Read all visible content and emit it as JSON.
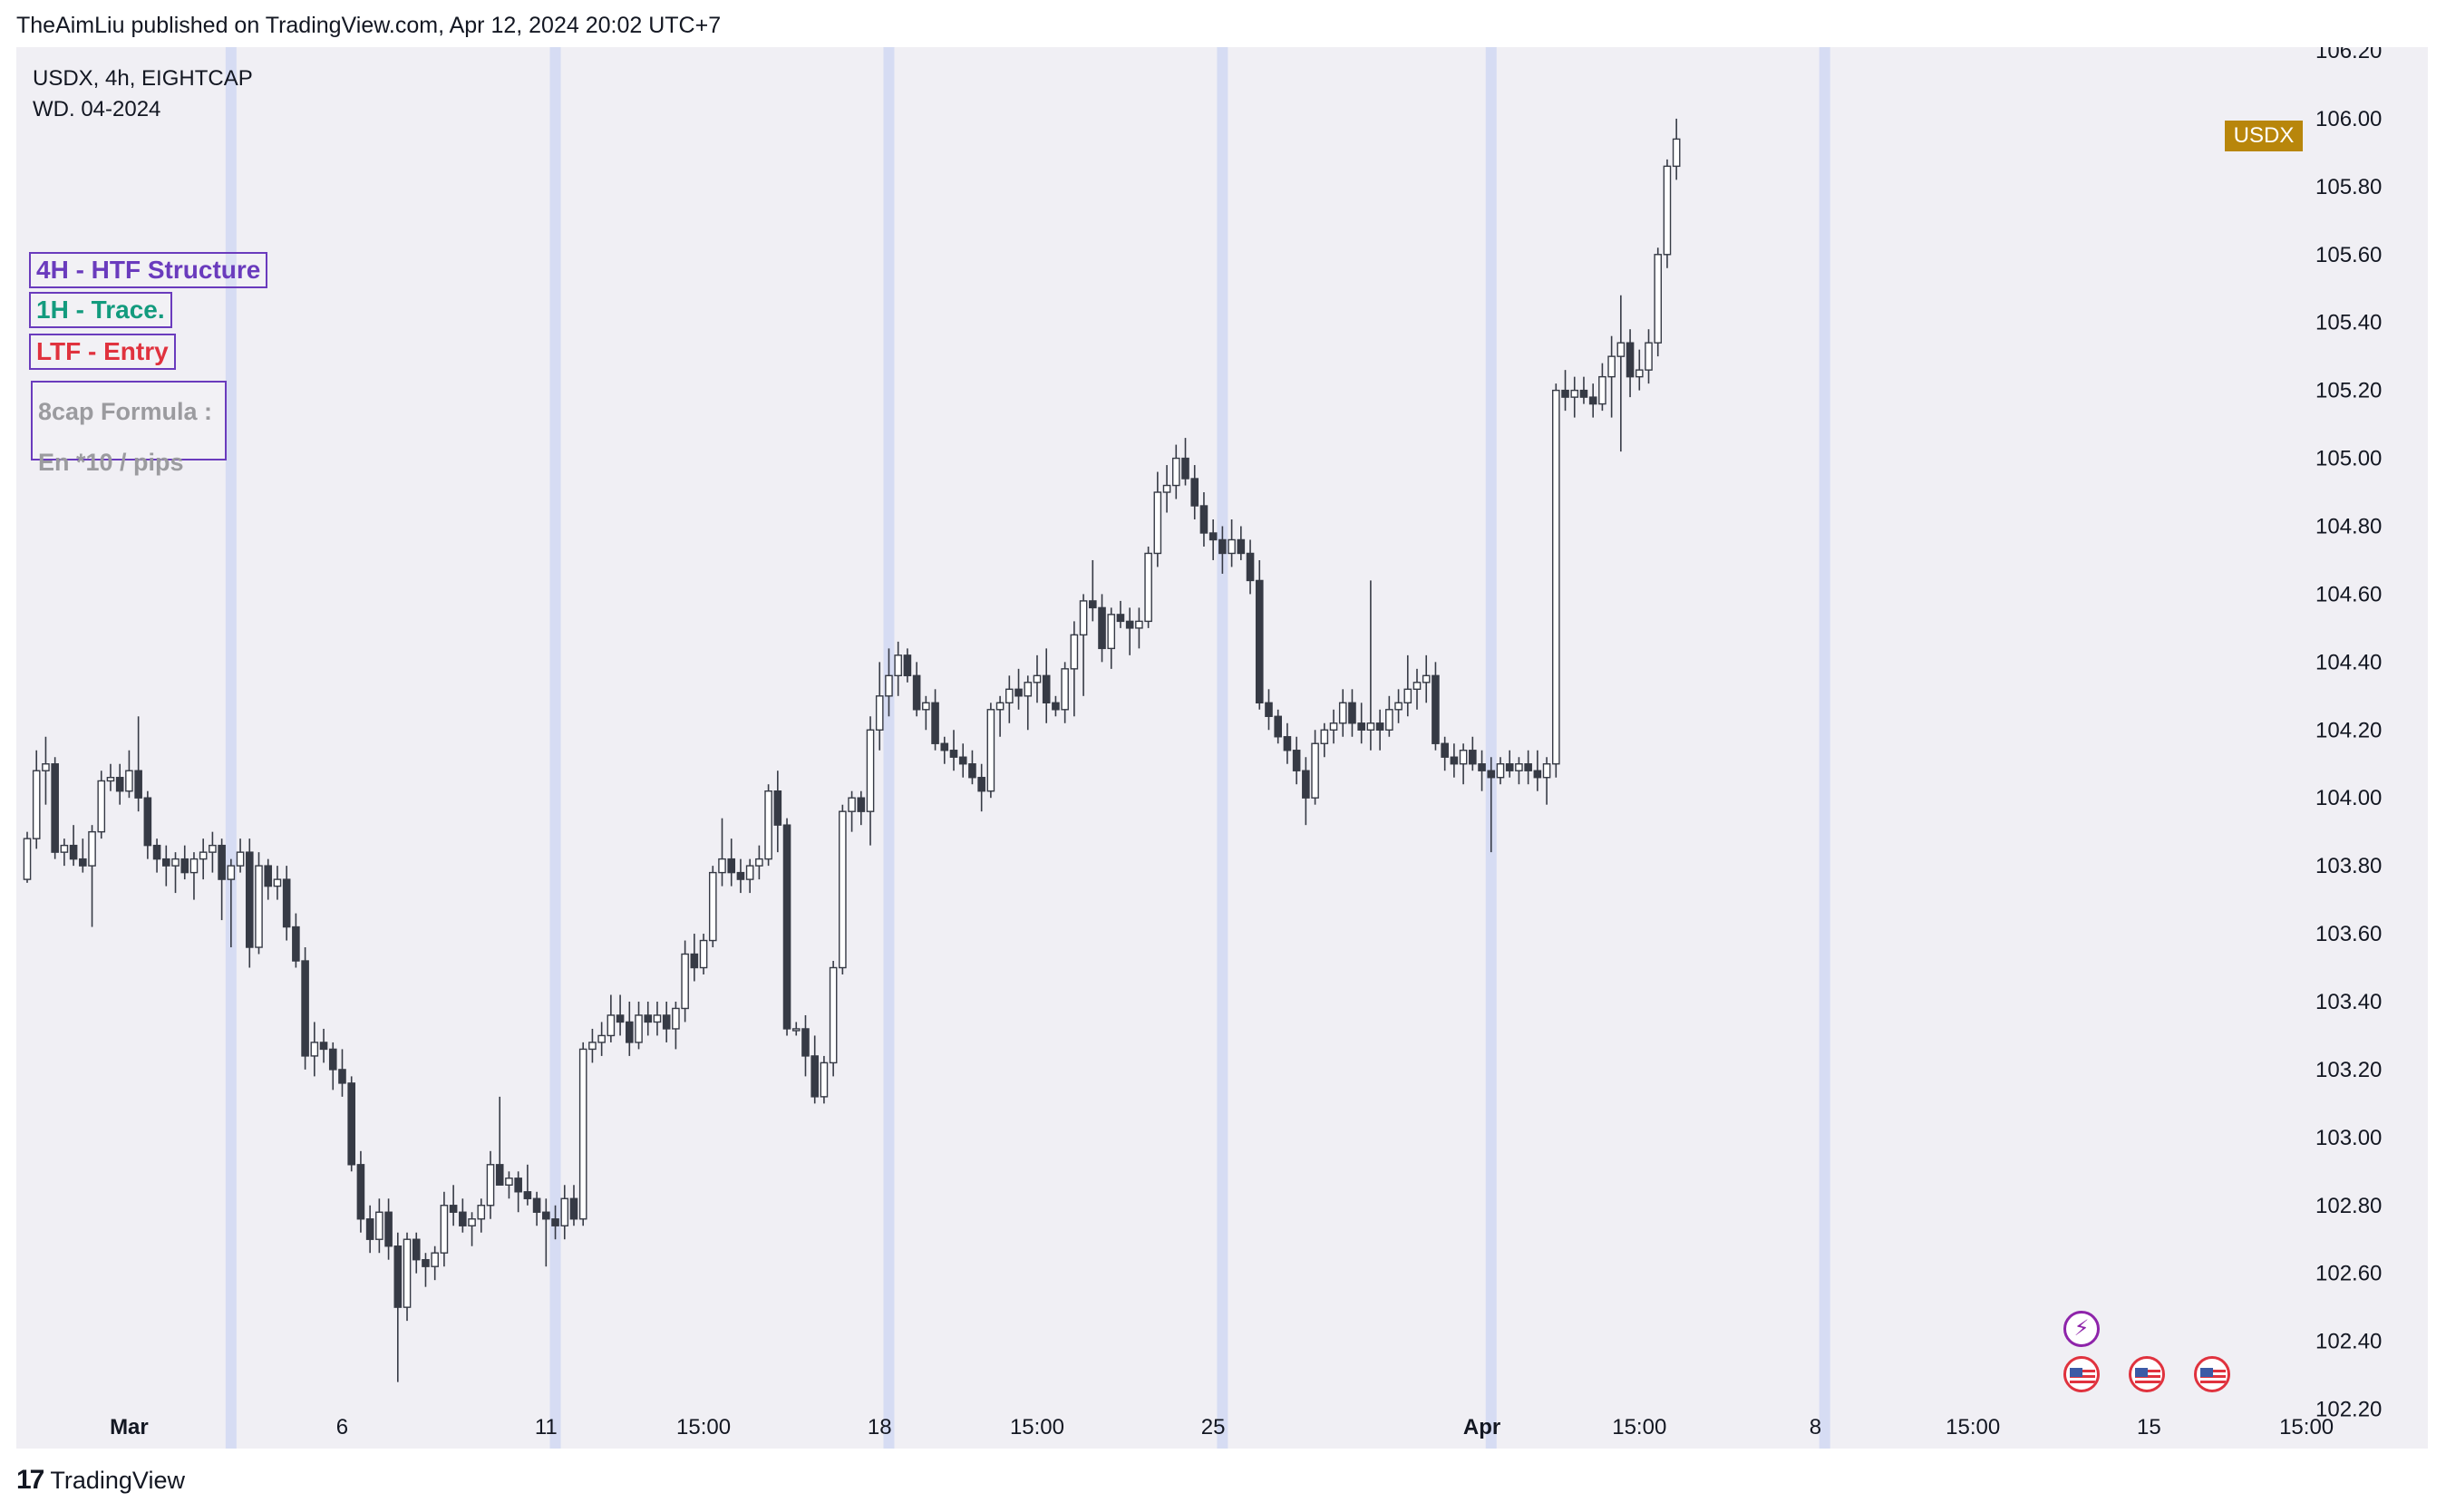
{
  "header": {
    "published": "TheAimLiu published on TradingView.com, Apr 12, 2024 20:02 UTC+7"
  },
  "legend": {
    "symbol_line": "USDX, 4h, EIGHTCAP",
    "note_line": "WD. 04-2024"
  },
  "labels": {
    "htf": "4H - HTF Structure",
    "trace": "1H - Trace.",
    "entry": "LTF - Entry",
    "formula_1": "8cap Formula :",
    "formula_2": "En *10 / pips"
  },
  "price_badge": {
    "text": "USDX",
    "color": "#b8860b"
  },
  "footer": {
    "brand": "TradingView",
    "logo": "17"
  },
  "events": {
    "bolt_icon": "lightning-icon",
    "flag_icon": "us-flag-icon",
    "bolt_glyph": "⚡"
  },
  "chart_data": {
    "type": "candlestick",
    "symbol": "USDX",
    "timeframe": "4h",
    "ylim": [
      102.1,
      106.2
    ],
    "y_ticks": [
      102.2,
      102.4,
      102.6,
      102.8,
      103.0,
      103.2,
      103.4,
      103.6,
      103.8,
      104.0,
      104.2,
      104.4,
      104.6,
      104.8,
      105.0,
      105.2,
      105.4,
      105.6,
      105.8,
      106.0,
      106.2
    ],
    "x_ticks": [
      {
        "label": "Mar",
        "bold": true,
        "index": 11
      },
      {
        "label": "6",
        "bold": false,
        "index": 34
      },
      {
        "label": "11",
        "bold": false,
        "index": 56
      },
      {
        "label": "15:00",
        "bold": false,
        "index": 73
      },
      {
        "label": "18",
        "bold": false,
        "index": 92
      },
      {
        "label": "15:00",
        "bold": false,
        "index": 109
      },
      {
        "label": "25",
        "bold": false,
        "index": 128
      },
      {
        "label": "Apr",
        "bold": true,
        "index": 157
      },
      {
        "label": "15:00",
        "bold": false,
        "index": 174
      },
      {
        "label": "8",
        "bold": false,
        "index": 193
      },
      {
        "label": "15:00",
        "bold": false,
        "index": 210
      },
      {
        "label": "15",
        "bold": false,
        "index": 229
      },
      {
        "label": "15:00",
        "bold": false,
        "index": 246
      }
    ],
    "session_bands": [
      22,
      57,
      93,
      129,
      158,
      194
    ],
    "colors": {
      "up_body": "#ffffff",
      "down_body": "#363a45",
      "wick": "#363a45",
      "band": "#d6dcf3"
    },
    "ohlc": [
      [
        103.76,
        103.9,
        103.75,
        103.88
      ],
      [
        103.88,
        104.14,
        103.85,
        104.08
      ],
      [
        104.08,
        104.18,
        103.98,
        104.1
      ],
      [
        104.1,
        104.12,
        103.82,
        103.84
      ],
      [
        103.84,
        103.88,
        103.8,
        103.86
      ],
      [
        103.86,
        103.92,
        103.8,
        103.82
      ],
      [
        103.82,
        103.88,
        103.78,
        103.8
      ],
      [
        103.8,
        103.92,
        103.62,
        103.9
      ],
      [
        103.9,
        104.08,
        103.88,
        104.05
      ],
      [
        104.05,
        104.1,
        104.02,
        104.06
      ],
      [
        104.06,
        104.1,
        103.98,
        104.02
      ],
      [
        104.02,
        104.14,
        104.0,
        104.08
      ],
      [
        104.08,
        104.24,
        103.96,
        104.0
      ],
      [
        104.0,
        104.02,
        103.82,
        103.86
      ],
      [
        103.86,
        103.88,
        103.78,
        103.82
      ],
      [
        103.82,
        103.86,
        103.74,
        103.8
      ],
      [
        103.8,
        103.84,
        103.72,
        103.82
      ],
      [
        103.82,
        103.86,
        103.76,
        103.78
      ],
      [
        103.78,
        103.84,
        103.7,
        103.82
      ],
      [
        103.82,
        103.88,
        103.76,
        103.84
      ],
      [
        103.84,
        103.9,
        103.78,
        103.86
      ],
      [
        103.86,
        103.88,
        103.64,
        103.76
      ],
      [
        103.76,
        103.82,
        103.56,
        103.8
      ],
      [
        103.8,
        103.88,
        103.78,
        103.84
      ],
      [
        103.84,
        103.88,
        103.5,
        103.56
      ],
      [
        103.56,
        103.84,
        103.54,
        103.8
      ],
      [
        103.8,
        103.82,
        103.7,
        103.74
      ],
      [
        103.74,
        103.8,
        103.7,
        103.76
      ],
      [
        103.76,
        103.8,
        103.58,
        103.62
      ],
      [
        103.62,
        103.66,
        103.5,
        103.52
      ],
      [
        103.52,
        103.56,
        103.2,
        103.24
      ],
      [
        103.24,
        103.34,
        103.18,
        103.28
      ],
      [
        103.28,
        103.32,
        103.22,
        103.26
      ],
      [
        103.26,
        103.28,
        103.14,
        103.2
      ],
      [
        103.2,
        103.26,
        103.12,
        103.16
      ],
      [
        103.16,
        103.18,
        102.9,
        102.92
      ],
      [
        102.92,
        102.96,
        102.72,
        102.76
      ],
      [
        102.76,
        102.8,
        102.66,
        102.7
      ],
      [
        102.7,
        102.82,
        102.66,
        102.78
      ],
      [
        102.78,
        102.82,
        102.64,
        102.68
      ],
      [
        102.68,
        102.72,
        102.28,
        102.5
      ],
      [
        102.5,
        102.72,
        102.46,
        102.7
      ],
      [
        102.7,
        102.72,
        102.6,
        102.64
      ],
      [
        102.64,
        102.66,
        102.56,
        102.62
      ],
      [
        102.62,
        102.68,
        102.58,
        102.66
      ],
      [
        102.66,
        102.84,
        102.62,
        102.8
      ],
      [
        102.8,
        102.86,
        102.74,
        102.78
      ],
      [
        102.78,
        102.82,
        102.72,
        102.74
      ],
      [
        102.74,
        102.78,
        102.68,
        102.76
      ],
      [
        102.76,
        102.82,
        102.72,
        102.8
      ],
      [
        102.8,
        102.96,
        102.76,
        102.92
      ],
      [
        102.92,
        103.12,
        102.88,
        102.86
      ],
      [
        102.86,
        102.9,
        102.82,
        102.88
      ],
      [
        102.88,
        102.9,
        102.78,
        102.84
      ],
      [
        102.84,
        102.92,
        102.8,
        102.82
      ],
      [
        102.82,
        102.84,
        102.74,
        102.78
      ],
      [
        102.78,
        102.82,
        102.62,
        102.76
      ],
      [
        102.76,
        102.8,
        102.7,
        102.74
      ],
      [
        102.74,
        102.86,
        102.7,
        102.82
      ],
      [
        102.82,
        102.86,
        102.74,
        102.76
      ],
      [
        102.76,
        103.28,
        102.74,
        103.26
      ],
      [
        103.26,
        103.32,
        103.22,
        103.28
      ],
      [
        103.28,
        103.34,
        103.24,
        103.3
      ],
      [
        103.3,
        103.42,
        103.28,
        103.36
      ],
      [
        103.36,
        103.42,
        103.3,
        103.34
      ],
      [
        103.34,
        103.4,
        103.24,
        103.28
      ],
      [
        103.28,
        103.4,
        103.26,
        103.36
      ],
      [
        103.36,
        103.4,
        103.3,
        103.34
      ],
      [
        103.34,
        103.4,
        103.3,
        103.36
      ],
      [
        103.36,
        103.4,
        103.28,
        103.32
      ],
      [
        103.32,
        103.4,
        103.26,
        103.38
      ],
      [
        103.38,
        103.58,
        103.34,
        103.54
      ],
      [
        103.54,
        103.6,
        103.46,
        103.5
      ],
      [
        103.5,
        103.6,
        103.48,
        103.58
      ],
      [
        103.58,
        103.8,
        103.56,
        103.78
      ],
      [
        103.78,
        103.94,
        103.74,
        103.82
      ],
      [
        103.82,
        103.88,
        103.74,
        103.78
      ],
      [
        103.78,
        103.82,
        103.72,
        103.76
      ],
      [
        103.76,
        103.82,
        103.72,
        103.8
      ],
      [
        103.8,
        103.86,
        103.76,
        103.82
      ],
      [
        103.82,
        104.04,
        103.8,
        104.02
      ],
      [
        104.02,
        104.08,
        103.84,
        103.92
      ],
      [
        103.92,
        103.94,
        103.3,
        103.32
      ],
      [
        103.32,
        103.34,
        103.3,
        103.32
      ],
      [
        103.32,
        103.36,
        103.18,
        103.24
      ],
      [
        103.24,
        103.3,
        103.1,
        103.12
      ],
      [
        103.12,
        103.24,
        103.1,
        103.22
      ],
      [
        103.22,
        103.52,
        103.18,
        103.5
      ],
      [
        103.5,
        103.98,
        103.48,
        103.96
      ],
      [
        103.96,
        104.02,
        103.9,
        104.0
      ],
      [
        104.0,
        104.02,
        103.92,
        103.96
      ],
      [
        103.96,
        104.24,
        103.86,
        104.2
      ],
      [
        104.2,
        104.4,
        104.14,
        104.3
      ],
      [
        104.3,
        104.44,
        104.24,
        104.36
      ],
      [
        104.36,
        104.46,
        104.3,
        104.42
      ],
      [
        104.42,
        104.44,
        104.34,
        104.36
      ],
      [
        104.36,
        104.4,
        104.24,
        104.26
      ],
      [
        104.26,
        104.3,
        104.2,
        104.28
      ],
      [
        104.28,
        104.32,
        104.14,
        104.16
      ],
      [
        104.16,
        104.18,
        104.1,
        104.14
      ],
      [
        104.14,
        104.2,
        104.08,
        104.12
      ],
      [
        104.12,
        104.16,
        104.06,
        104.1
      ],
      [
        104.1,
        104.14,
        104.04,
        104.06
      ],
      [
        104.06,
        104.1,
        103.96,
        104.02
      ],
      [
        104.02,
        104.28,
        104.0,
        104.26
      ],
      [
        104.26,
        104.3,
        104.18,
        104.28
      ],
      [
        104.28,
        104.36,
        104.22,
        104.32
      ],
      [
        104.32,
        104.38,
        104.26,
        104.3
      ],
      [
        104.3,
        104.36,
        104.2,
        104.34
      ],
      [
        104.34,
        104.42,
        104.28,
        104.36
      ],
      [
        104.36,
        104.44,
        104.22,
        104.28
      ],
      [
        104.28,
        104.3,
        104.24,
        104.26
      ],
      [
        104.26,
        104.4,
        104.22,
        104.38
      ],
      [
        104.38,
        104.52,
        104.24,
        104.48
      ],
      [
        104.48,
        104.6,
        104.3,
        104.58
      ],
      [
        104.58,
        104.7,
        104.52,
        104.56
      ],
      [
        104.56,
        104.6,
        104.4,
        104.44
      ],
      [
        104.44,
        104.56,
        104.38,
        104.54
      ],
      [
        104.54,
        104.58,
        104.5,
        104.52
      ],
      [
        104.52,
        104.56,
        104.42,
        104.5
      ],
      [
        104.5,
        104.56,
        104.44,
        104.52
      ],
      [
        104.52,
        104.74,
        104.5,
        104.72
      ],
      [
        104.72,
        104.96,
        104.68,
        104.9
      ],
      [
        104.9,
        104.98,
        104.84,
        104.92
      ],
      [
        104.92,
        105.04,
        104.88,
        105.0
      ],
      [
        105.0,
        105.06,
        104.92,
        104.94
      ],
      [
        104.94,
        104.98,
        104.82,
        104.86
      ],
      [
        104.86,
        104.9,
        104.74,
        104.78
      ],
      [
        104.78,
        104.82,
        104.7,
        104.76
      ],
      [
        104.76,
        104.8,
        104.66,
        104.72
      ],
      [
        104.72,
        104.82,
        104.68,
        104.76
      ],
      [
        104.76,
        104.8,
        104.7,
        104.72
      ],
      [
        104.72,
        104.76,
        104.6,
        104.64
      ],
      [
        104.64,
        104.7,
        104.26,
        104.28
      ],
      [
        104.28,
        104.32,
        104.2,
        104.24
      ],
      [
        104.24,
        104.26,
        104.16,
        104.18
      ],
      [
        104.18,
        104.22,
        104.1,
        104.14
      ],
      [
        104.14,
        104.18,
        104.04,
        104.08
      ],
      [
        104.08,
        104.12,
        103.92,
        104.0
      ],
      [
        104.0,
        104.2,
        103.98,
        104.16
      ],
      [
        104.16,
        104.22,
        104.12,
        104.2
      ],
      [
        104.2,
        104.26,
        104.16,
        104.22
      ],
      [
        104.22,
        104.32,
        104.18,
        104.28
      ],
      [
        104.28,
        104.32,
        104.18,
        104.22
      ],
      [
        104.22,
        104.28,
        104.16,
        104.2
      ],
      [
        104.2,
        104.64,
        104.14,
        104.22
      ],
      [
        104.22,
        104.26,
        104.14,
        104.2
      ],
      [
        104.2,
        104.3,
        104.18,
        104.26
      ],
      [
        104.26,
        104.32,
        104.22,
        104.28
      ],
      [
        104.28,
        104.42,
        104.24,
        104.32
      ],
      [
        104.32,
        104.38,
        104.26,
        104.34
      ],
      [
        104.34,
        104.42,
        104.28,
        104.36
      ],
      [
        104.36,
        104.4,
        104.14,
        104.16
      ],
      [
        104.16,
        104.18,
        104.08,
        104.12
      ],
      [
        104.12,
        104.16,
        104.06,
        104.1
      ],
      [
        104.1,
        104.16,
        104.04,
        104.14
      ],
      [
        104.14,
        104.18,
        104.08,
        104.1
      ],
      [
        104.1,
        104.14,
        104.02,
        104.08
      ],
      [
        104.08,
        104.12,
        103.84,
        104.06
      ],
      [
        104.06,
        104.12,
        104.04,
        104.1
      ],
      [
        104.1,
        104.14,
        104.06,
        104.08
      ],
      [
        104.08,
        104.12,
        104.04,
        104.1
      ],
      [
        104.1,
        104.14,
        104.04,
        104.08
      ],
      [
        104.08,
        104.14,
        104.02,
        104.06
      ],
      [
        104.06,
        104.12,
        103.98,
        104.1
      ],
      [
        104.1,
        105.22,
        104.06,
        105.2
      ],
      [
        105.2,
        105.26,
        105.14,
        105.18
      ],
      [
        105.18,
        105.24,
        105.12,
        105.2
      ],
      [
        105.2,
        105.24,
        105.16,
        105.18
      ],
      [
        105.18,
        105.22,
        105.12,
        105.16
      ],
      [
        105.16,
        105.28,
        105.14,
        105.24
      ],
      [
        105.24,
        105.36,
        105.12,
        105.3
      ],
      [
        105.3,
        105.48,
        105.02,
        105.34
      ],
      [
        105.34,
        105.38,
        105.18,
        105.24
      ],
      [
        105.24,
        105.32,
        105.2,
        105.26
      ],
      [
        105.26,
        105.38,
        105.22,
        105.34
      ],
      [
        105.34,
        105.62,
        105.3,
        105.6
      ],
      [
        105.6,
        105.88,
        105.56,
        105.86
      ],
      [
        105.86,
        106.0,
        105.82,
        105.94
      ]
    ]
  }
}
